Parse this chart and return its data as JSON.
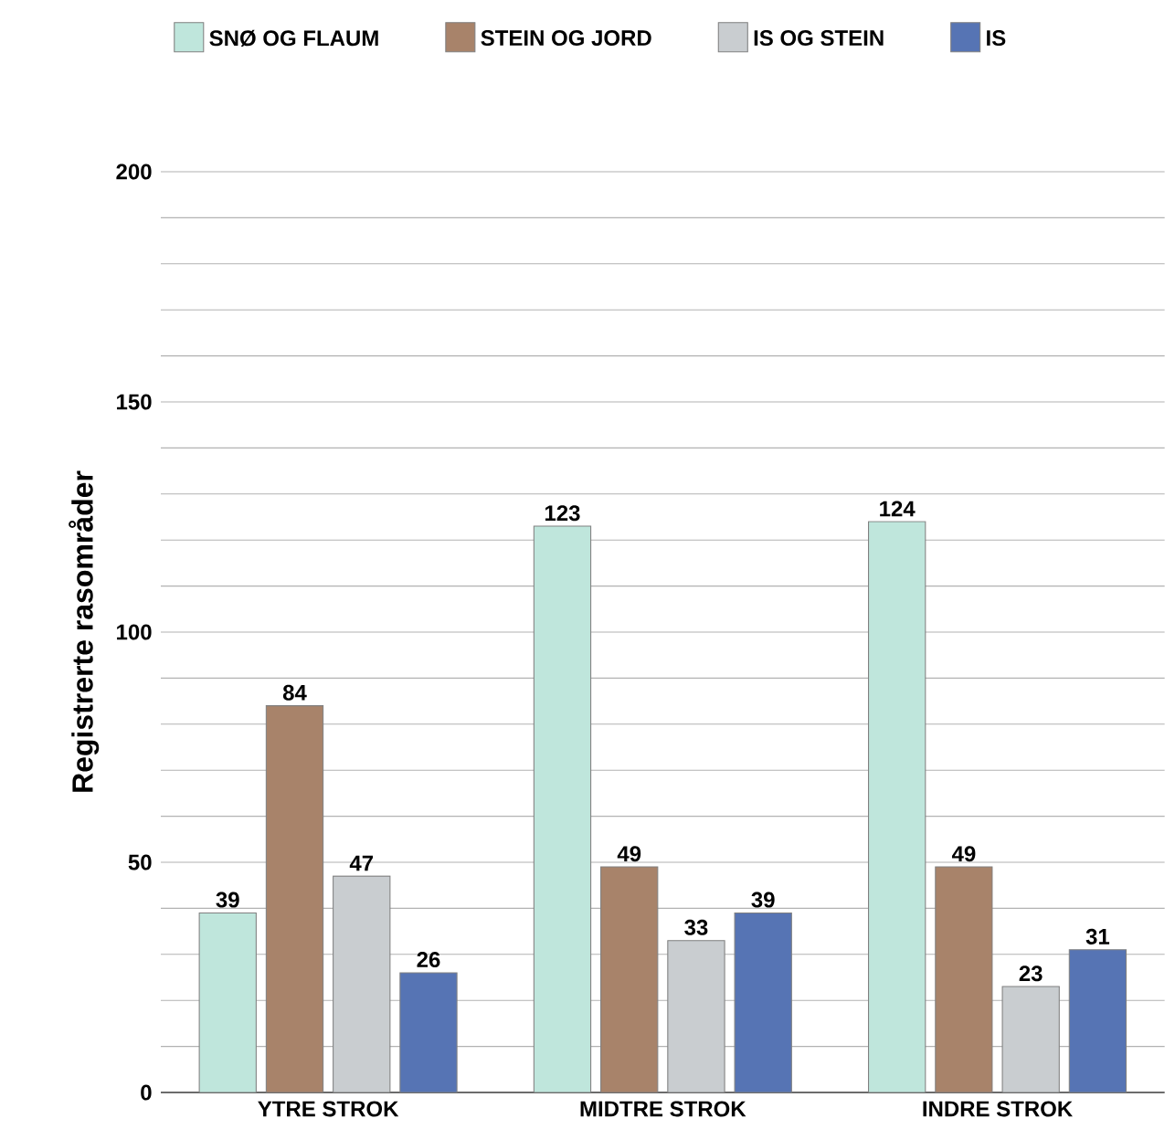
{
  "chart_data": {
    "type": "bar",
    "ylabel": "Registrerte rasområder",
    "categories": [
      "YTRE STROK",
      "MIDTRE STROK",
      "INDRE STROK"
    ],
    "series": [
      {
        "name": "SNØ OG FLAUM",
        "color": "#bfe6dc",
        "values": [
          39,
          123,
          124
        ]
      },
      {
        "name": "STEIN OG JORD",
        "color": "#a8836a",
        "values": [
          84,
          49,
          49
        ]
      },
      {
        "name": "IS OG STEIN",
        "color": "#c9cdd0",
        "values": [
          47,
          33,
          23
        ]
      },
      {
        "name": "IS",
        "color": "#5674b4",
        "values": [
          26,
          39,
          31
        ]
      }
    ],
    "ylim": [
      0,
      200
    ],
    "yticks": [
      0,
      50,
      100,
      150,
      200
    ],
    "grid": "y",
    "legend": "top",
    "data_labels": true
  }
}
